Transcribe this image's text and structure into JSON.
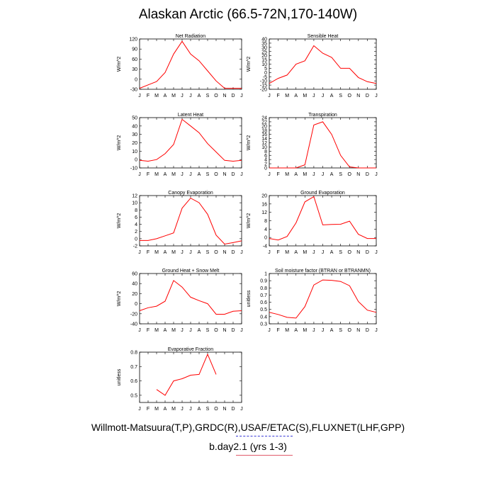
{
  "page": {
    "title": "Alaskan Arctic (66.5-72N,170-140W)",
    "caption_sources": "Willmott-Matsuura(T,P),GRDC(R),USAF/ETAC(S),FLUXNET(LHF,GPP)",
    "caption_case": "b.day2.1 (yrs 1-3)"
  },
  "colors": {
    "series": "#ff0000",
    "axis": "#000000"
  },
  "chart_data": [
    {
      "type": "line",
      "title": "Net Radiation",
      "ylabel": "W/m^2",
      "x": [
        "J",
        "F",
        "M",
        "A",
        "M",
        "J",
        "J",
        "A",
        "S",
        "O",
        "N",
        "D",
        "J"
      ],
      "ylim": [
        -30,
        120
      ],
      "yticks": [
        -30,
        0,
        30,
        60,
        90,
        120
      ],
      "series": [
        {
          "values": [
            -27,
            -17,
            -7,
            20,
            75,
            113,
            75,
            55,
            25,
            -5,
            -27,
            -27,
            -27
          ]
        }
      ]
    },
    {
      "type": "line",
      "title": "Sensible Heat",
      "ylabel": "W/m^2",
      "x": [
        "J",
        "F",
        "M",
        "A",
        "M",
        "J",
        "J",
        "A",
        "S",
        "O",
        "N",
        "D",
        "J"
      ],
      "ylim": [
        -20,
        40
      ],
      "yticks": [
        -20,
        -15,
        -10,
        -5,
        0,
        5,
        10,
        15,
        20,
        25,
        30,
        35,
        40
      ],
      "series": [
        {
          "values": [
            -13,
            -7,
            -3,
            10,
            14,
            32,
            23,
            18,
            5,
            5,
            -6,
            -11,
            -13
          ]
        }
      ]
    },
    {
      "type": "line",
      "title": "Latent Heat",
      "ylabel": "W/m^2",
      "x": [
        "J",
        "F",
        "M",
        "A",
        "M",
        "J",
        "J",
        "A",
        "S",
        "O",
        "N",
        "D",
        "J"
      ],
      "ylim": [
        -10,
        50
      ],
      "yticks": [
        -10,
        0,
        10,
        20,
        30,
        40,
        50
      ],
      "series": [
        {
          "values": [
            -1,
            -2,
            0,
            7,
            18,
            48,
            40,
            32,
            19,
            9,
            -1,
            -2,
            -1
          ]
        }
      ]
    },
    {
      "type": "line",
      "title": "Transpiration",
      "ylabel": "W/m^2",
      "x": [
        "J",
        "F",
        "M",
        "A",
        "M",
        "J",
        "J",
        "A",
        "S",
        "O",
        "N",
        "D",
        "J"
      ],
      "ylim": [
        0,
        24
      ],
      "yticks": [
        0,
        2,
        4,
        6,
        8,
        10,
        12,
        14,
        16,
        18,
        20,
        22,
        24
      ],
      "series": [
        {
          "values": [
            0,
            0,
            0,
            0,
            1.5,
            20.5,
            22,
            16,
            6,
            0.5,
            0,
            0,
            0
          ]
        }
      ]
    },
    {
      "type": "line",
      "title": "Canopy Evaporation",
      "ylabel": "W/m^2",
      "x": [
        "J",
        "F",
        "M",
        "A",
        "M",
        "J",
        "J",
        "A",
        "S",
        "O",
        "N",
        "D",
        "J"
      ],
      "ylim": [
        -2,
        12
      ],
      "yticks": [
        -2,
        0,
        2,
        4,
        6,
        8,
        10,
        12
      ],
      "series": [
        {
          "values": [
            -0.5,
            -0.5,
            0,
            0.8,
            1.6,
            8.5,
            11.3,
            10,
            6.8,
            1,
            -1.5,
            -1.1,
            -0.6
          ]
        }
      ]
    },
    {
      "type": "line",
      "title": "Ground Evaporation",
      "ylabel": "W/m^2",
      "x": [
        "J",
        "F",
        "M",
        "A",
        "M",
        "J",
        "J",
        "A",
        "S",
        "O",
        "N",
        "D",
        "J"
      ],
      "ylim": [
        -4,
        20
      ],
      "yticks": [
        -4,
        0,
        4,
        8,
        12,
        16,
        20
      ],
      "series": [
        {
          "values": [
            -0.5,
            -1.2,
            0.5,
            7,
            17,
            19.5,
            6,
            6.2,
            6.3,
            7.8,
            1.5,
            -0.5,
            -0.5
          ]
        }
      ]
    },
    {
      "type": "line",
      "title": "Ground Heat + Snow Melt",
      "ylabel": "W/m^2",
      "x": [
        "J",
        "F",
        "M",
        "A",
        "M",
        "J",
        "J",
        "A",
        "S",
        "O",
        "N",
        "D",
        "J"
      ],
      "ylim": [
        -40,
        60
      ],
      "yticks": [
        -40,
        -20,
        0,
        20,
        40,
        60
      ],
      "series": [
        {
          "values": [
            -14,
            -8,
            -5,
            5,
            46,
            33,
            13,
            6,
            0,
            -21,
            -21,
            -15,
            -14
          ]
        }
      ]
    },
    {
      "type": "line",
      "title": "Soil moisture factor (BTRAN or BTRANMN)",
      "ylabel": "unitless",
      "x": [
        "J",
        "F",
        "M",
        "A",
        "M",
        "J",
        "J",
        "A",
        "S",
        "O",
        "N",
        "D",
        "J"
      ],
      "ylim": [
        0.3,
        1.0
      ],
      "yticks": [
        0.3,
        0.4,
        0.5,
        0.6,
        0.7,
        0.8,
        0.9,
        1.0
      ],
      "series": [
        {
          "values": [
            0.46,
            0.43,
            0.39,
            0.38,
            0.54,
            0.84,
            0.91,
            0.905,
            0.89,
            0.83,
            0.61,
            0.49,
            0.46
          ]
        }
      ]
    },
    {
      "type": "line",
      "title": "Evaporative Fraction",
      "ylabel": "unitless",
      "x": [
        "J",
        "F",
        "M",
        "A",
        "M",
        "J",
        "J",
        "A",
        "S",
        "O",
        "N",
        "D",
        "J"
      ],
      "ylim": [
        0.45,
        0.8
      ],
      "yticks": [
        0.5,
        0.6,
        0.7,
        0.8
      ],
      "series": [
        {
          "values": [
            null,
            null,
            0.54,
            0.5,
            0.6,
            0.615,
            0.64,
            0.645,
            0.785,
            0.645,
            null,
            null,
            null
          ]
        }
      ]
    }
  ]
}
